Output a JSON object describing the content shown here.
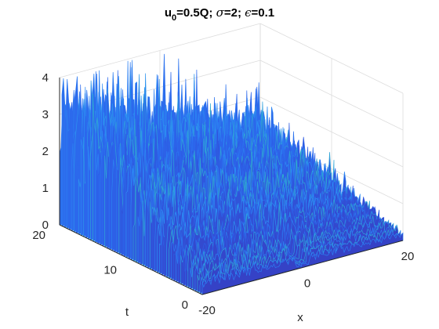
{
  "chart_data": {
    "type": "surface",
    "title_parts": {
      "u": "u",
      "sub": "0",
      "rest1": "=0.5Q; ",
      "sigma": "σ",
      "rest2": "=2; ",
      "epsilon": "ϵ",
      "rest3": "=0.1"
    },
    "xlabel": "x",
    "ylabel": "t",
    "zlabel": "",
    "xlim": [
      -20,
      20
    ],
    "ylim": [
      0,
      20
    ],
    "zlim": [
      0,
      4
    ],
    "x_ticks": [
      "-20",
      "0",
      "20"
    ],
    "y_ticks": [
      "0",
      "10",
      "20"
    ],
    "z_ticks": [
      "0",
      "1",
      "2",
      "3",
      "4"
    ],
    "grid": true,
    "colormap": "parula",
    "profile": {
      "description_free_values": true,
      "peak_amplitude_by_t": [
        {
          "t": 0,
          "max_u": 0.5
        },
        {
          "t": 5,
          "max_u": 1.5
        },
        {
          "t": 10,
          "max_u": 2.5
        },
        {
          "t": 15,
          "max_u": 3.3
        },
        {
          "t": 20,
          "max_u": 3.9
        }
      ],
      "central_notch_x": 0
    },
    "colors": {
      "low": "#3d26a8",
      "mid": "#2c8ef5",
      "high": "#31c3a9",
      "grid": "#dcdcdc",
      "axis": "#262626"
    }
  }
}
